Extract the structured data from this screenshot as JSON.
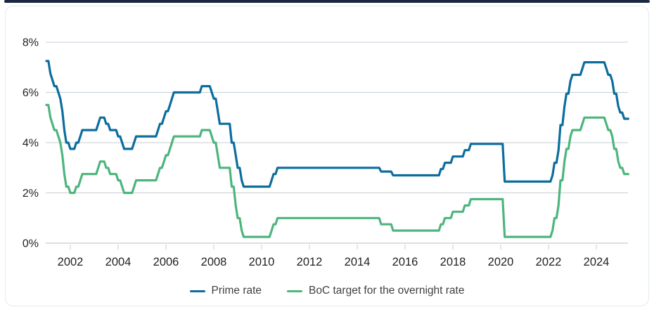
{
  "accent_bar_color": "#1a2740",
  "colors": {
    "prime_line": "#0c6d9d",
    "target_line": "#4db57d",
    "gridline": "#c5ced5",
    "axis": "#b7c2ca",
    "tick_text": "#232323",
    "legend_text": "#3f3f3f",
    "card_border": "#e1ebed"
  },
  "legend": {
    "items": [
      {
        "label": "Prime rate",
        "color": "#0c6d9d"
      },
      {
        "label": "BoC target for the overnight rate",
        "color": "#4db57d"
      }
    ]
  },
  "chart_data": {
    "type": "line",
    "title": "",
    "xlabel": "",
    "ylabel": "",
    "grid": true,
    "legend_position": "bottom",
    "x_axis": {
      "start_year": 2001,
      "start_month": 1,
      "end_year": 2025,
      "end_month": 5,
      "ticks": [
        2002,
        2004,
        2006,
        2008,
        2010,
        2012,
        2014,
        2016,
        2018,
        2020,
        2022,
        2024
      ],
      "tick_labels": [
        "2002",
        "2004",
        "2006",
        "2008",
        "2010",
        "2012",
        "2014",
        "2016",
        "2018",
        "2020",
        "2022",
        "2024"
      ]
    },
    "y_axis": {
      "range": [
        0,
        8
      ],
      "ticks": [
        0,
        2,
        4,
        6,
        8
      ],
      "tick_labels": [
        "0%",
        "2%",
        "4%",
        "6%",
        "8%"
      ]
    },
    "series": [
      {
        "id": "prime-rate",
        "name": "Prime rate",
        "color": "#0c6d9d",
        "monthly_values": [
          7.25,
          7.25,
          6.75,
          6.5,
          6.25,
          6.25,
          6.0,
          5.75,
          5.25,
          4.5,
          4.0,
          4.0,
          3.75,
          3.75,
          3.75,
          4.0,
          4.0,
          4.25,
          4.5,
          4.5,
          4.5,
          4.5,
          4.5,
          4.5,
          4.5,
          4.5,
          4.75,
          5.0,
          5.0,
          5.0,
          4.75,
          4.75,
          4.5,
          4.5,
          4.5,
          4.5,
          4.25,
          4.25,
          4.0,
          3.75,
          3.75,
          3.75,
          3.75,
          3.75,
          4.0,
          4.25,
          4.25,
          4.25,
          4.25,
          4.25,
          4.25,
          4.25,
          4.25,
          4.25,
          4.25,
          4.25,
          4.5,
          4.75,
          4.75,
          5.0,
          5.25,
          5.25,
          5.5,
          5.75,
          6.0,
          6.0,
          6.0,
          6.0,
          6.0,
          6.0,
          6.0,
          6.0,
          6.0,
          6.0,
          6.0,
          6.0,
          6.0,
          6.0,
          6.25,
          6.25,
          6.25,
          6.25,
          6.25,
          6.0,
          5.75,
          5.75,
          5.25,
          4.75,
          4.75,
          4.75,
          4.75,
          4.75,
          4.75,
          4.0,
          4.0,
          3.5,
          3.0,
          3.0,
          2.5,
          2.25,
          2.25,
          2.25,
          2.25,
          2.25,
          2.25,
          2.25,
          2.25,
          2.25,
          2.25,
          2.25,
          2.25,
          2.25,
          2.25,
          2.5,
          2.75,
          2.75,
          3.0,
          3.0,
          3.0,
          3.0,
          3.0,
          3.0,
          3.0,
          3.0,
          3.0,
          3.0,
          3.0,
          3.0,
          3.0,
          3.0,
          3.0,
          3.0,
          3.0,
          3.0,
          3.0,
          3.0,
          3.0,
          3.0,
          3.0,
          3.0,
          3.0,
          3.0,
          3.0,
          3.0,
          3.0,
          3.0,
          3.0,
          3.0,
          3.0,
          3.0,
          3.0,
          3.0,
          3.0,
          3.0,
          3.0,
          3.0,
          3.0,
          3.0,
          3.0,
          3.0,
          3.0,
          3.0,
          3.0,
          3.0,
          3.0,
          3.0,
          3.0,
          3.0,
          2.85,
          2.85,
          2.85,
          2.85,
          2.85,
          2.85,
          2.7,
          2.7,
          2.7,
          2.7,
          2.7,
          2.7,
          2.7,
          2.7,
          2.7,
          2.7,
          2.7,
          2.7,
          2.7,
          2.7,
          2.7,
          2.7,
          2.7,
          2.7,
          2.7,
          2.7,
          2.7,
          2.7,
          2.7,
          2.7,
          2.95,
          2.95,
          3.2,
          3.2,
          3.2,
          3.2,
          3.45,
          3.45,
          3.45,
          3.45,
          3.45,
          3.45,
          3.7,
          3.7,
          3.7,
          3.95,
          3.95,
          3.95,
          3.95,
          3.95,
          3.95,
          3.95,
          3.95,
          3.95,
          3.95,
          3.95,
          3.95,
          3.95,
          3.95,
          3.95,
          3.95,
          3.95,
          2.45,
          2.45,
          2.45,
          2.45,
          2.45,
          2.45,
          2.45,
          2.45,
          2.45,
          2.45,
          2.45,
          2.45,
          2.45,
          2.45,
          2.45,
          2.45,
          2.45,
          2.45,
          2.45,
          2.45,
          2.45,
          2.45,
          2.45,
          2.45,
          2.7,
          3.2,
          3.2,
          3.7,
          4.7,
          4.7,
          5.45,
          5.95,
          5.95,
          6.45,
          6.7,
          6.7,
          6.7,
          6.7,
          6.7,
          6.95,
          7.2,
          7.2,
          7.2,
          7.2,
          7.2,
          7.2,
          7.2,
          7.2,
          7.2,
          7.2,
          7.2,
          6.95,
          6.7,
          6.7,
          6.45,
          5.95,
          5.95,
          5.45,
          5.2,
          5.2,
          4.95,
          4.95,
          4.95
        ]
      },
      {
        "id": "boc-target",
        "name": "BoC target for the overnight rate",
        "color": "#4db57d",
        "monthly_values": [
          5.5,
          5.5,
          5.0,
          4.75,
          4.5,
          4.5,
          4.25,
          4.0,
          3.5,
          2.75,
          2.25,
          2.25,
          2.0,
          2.0,
          2.0,
          2.25,
          2.25,
          2.5,
          2.75,
          2.75,
          2.75,
          2.75,
          2.75,
          2.75,
          2.75,
          2.75,
          3.0,
          3.25,
          3.25,
          3.25,
          3.0,
          3.0,
          2.75,
          2.75,
          2.75,
          2.75,
          2.5,
          2.5,
          2.25,
          2.0,
          2.0,
          2.0,
          2.0,
          2.0,
          2.25,
          2.5,
          2.5,
          2.5,
          2.5,
          2.5,
          2.5,
          2.5,
          2.5,
          2.5,
          2.5,
          2.5,
          2.75,
          3.0,
          3.0,
          3.25,
          3.5,
          3.5,
          3.75,
          4.0,
          4.25,
          4.25,
          4.25,
          4.25,
          4.25,
          4.25,
          4.25,
          4.25,
          4.25,
          4.25,
          4.25,
          4.25,
          4.25,
          4.25,
          4.5,
          4.5,
          4.5,
          4.5,
          4.5,
          4.25,
          4.0,
          4.0,
          3.5,
          3.0,
          3.0,
          3.0,
          3.0,
          3.0,
          3.0,
          2.25,
          2.25,
          1.5,
          1.0,
          1.0,
          0.5,
          0.25,
          0.25,
          0.25,
          0.25,
          0.25,
          0.25,
          0.25,
          0.25,
          0.25,
          0.25,
          0.25,
          0.25,
          0.25,
          0.25,
          0.5,
          0.75,
          0.75,
          1.0,
          1.0,
          1.0,
          1.0,
          1.0,
          1.0,
          1.0,
          1.0,
          1.0,
          1.0,
          1.0,
          1.0,
          1.0,
          1.0,
          1.0,
          1.0,
          1.0,
          1.0,
          1.0,
          1.0,
          1.0,
          1.0,
          1.0,
          1.0,
          1.0,
          1.0,
          1.0,
          1.0,
          1.0,
          1.0,
          1.0,
          1.0,
          1.0,
          1.0,
          1.0,
          1.0,
          1.0,
          1.0,
          1.0,
          1.0,
          1.0,
          1.0,
          1.0,
          1.0,
          1.0,
          1.0,
          1.0,
          1.0,
          1.0,
          1.0,
          1.0,
          1.0,
          0.75,
          0.75,
          0.75,
          0.75,
          0.75,
          0.75,
          0.5,
          0.5,
          0.5,
          0.5,
          0.5,
          0.5,
          0.5,
          0.5,
          0.5,
          0.5,
          0.5,
          0.5,
          0.5,
          0.5,
          0.5,
          0.5,
          0.5,
          0.5,
          0.5,
          0.5,
          0.5,
          0.5,
          0.5,
          0.5,
          0.75,
          0.75,
          1.0,
          1.0,
          1.0,
          1.0,
          1.25,
          1.25,
          1.25,
          1.25,
          1.25,
          1.25,
          1.5,
          1.5,
          1.5,
          1.75,
          1.75,
          1.75,
          1.75,
          1.75,
          1.75,
          1.75,
          1.75,
          1.75,
          1.75,
          1.75,
          1.75,
          1.75,
          1.75,
          1.75,
          1.75,
          1.75,
          0.25,
          0.25,
          0.25,
          0.25,
          0.25,
          0.25,
          0.25,
          0.25,
          0.25,
          0.25,
          0.25,
          0.25,
          0.25,
          0.25,
          0.25,
          0.25,
          0.25,
          0.25,
          0.25,
          0.25,
          0.25,
          0.25,
          0.25,
          0.25,
          0.5,
          1.0,
          1.0,
          1.5,
          2.5,
          2.5,
          3.25,
          3.75,
          3.75,
          4.25,
          4.5,
          4.5,
          4.5,
          4.5,
          4.5,
          4.75,
          5.0,
          5.0,
          5.0,
          5.0,
          5.0,
          5.0,
          5.0,
          5.0,
          5.0,
          5.0,
          5.0,
          4.75,
          4.5,
          4.5,
          4.25,
          3.75,
          3.75,
          3.25,
          3.0,
          3.0,
          2.75,
          2.75,
          2.75
        ]
      }
    ]
  }
}
